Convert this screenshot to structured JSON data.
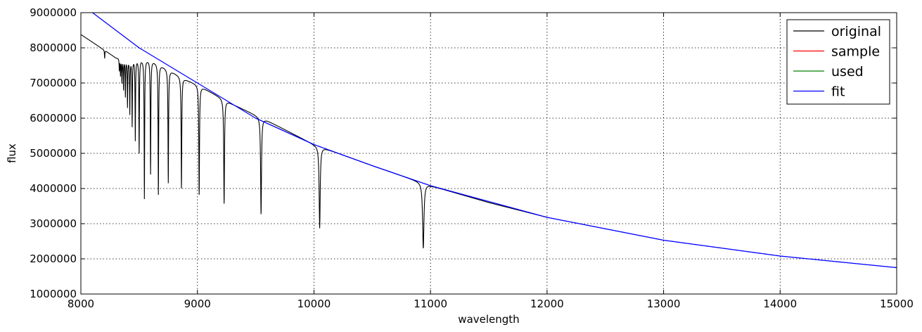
{
  "chart_data": {
    "type": "line",
    "title": "",
    "xlabel": "wavelength",
    "ylabel": "flux",
    "xlim": [
      8000,
      15000
    ],
    "ylim": [
      1000000,
      9000000
    ],
    "xticks": [
      8000,
      9000,
      10000,
      11000,
      12000,
      13000,
      14000,
      15000
    ],
    "yticks": [
      1000000,
      2000000,
      3000000,
      4000000,
      5000000,
      6000000,
      7000000,
      8000000,
      9000000
    ],
    "xtick_labels": [
      "8000",
      "9000",
      "10000",
      "11000",
      "12000",
      "13000",
      "14000",
      "15000"
    ],
    "ytick_labels": [
      "1000000",
      "2000000",
      "3000000",
      "4000000",
      "5000000",
      "6000000",
      "7000000",
      "8000000",
      "9000000"
    ],
    "grid": true,
    "legend_position": "top-right",
    "legend": [
      "original",
      "sample",
      "used",
      "fit"
    ],
    "series": [
      {
        "name": "original",
        "color": "#000000",
        "continuum": {
          "x": [
            8000,
            8300,
            8600,
            8900,
            9000,
            9300,
            9600,
            10000,
            10500,
            11000,
            11500,
            12000
          ],
          "y": [
            8380000,
            7720000,
            7660000,
            7100000,
            6950000,
            6400000,
            5930000,
            5250000,
            4650000,
            4080000,
            3600000,
            3180000
          ]
        },
        "absorption_lines": [
          {
            "x": 8204,
            "min": 7700000
          },
          {
            "x": 8330,
            "min": 7350000
          },
          {
            "x": 8340,
            "min": 7200000
          },
          {
            "x": 8352,
            "min": 7000000
          },
          {
            "x": 8366,
            "min": 6800000
          },
          {
            "x": 8382,
            "min": 6600000
          },
          {
            "x": 8400,
            "min": 6300000
          },
          {
            "x": 8420,
            "min": 6100000
          },
          {
            "x": 8440,
            "min": 5750000
          },
          {
            "x": 8467,
            "min": 5350000
          },
          {
            "x": 8500,
            "min": 5000000
          },
          {
            "x": 8545,
            "min": 3700000
          },
          {
            "x": 8598,
            "min": 4400000
          },
          {
            "x": 8665,
            "min": 3820000
          },
          {
            "x": 8750,
            "min": 4150000
          },
          {
            "x": 8863,
            "min": 4000000
          },
          {
            "x": 9015,
            "min": 3820000
          },
          {
            "x": 9229,
            "min": 3570000
          },
          {
            "x": 9546,
            "min": 3270000
          },
          {
            "x": 10049,
            "min": 2870000
          },
          {
            "x": 10938,
            "min": 2300000
          }
        ]
      },
      {
        "name": "sample",
        "color": "#ff0000",
        "x": [],
        "y": []
      },
      {
        "name": "used",
        "color": "#008000",
        "x": [],
        "y": []
      },
      {
        "name": "fit",
        "color": "#0000ff",
        "x": [
          8100,
          8500,
          9000,
          9500,
          10000,
          10500,
          11000,
          12000,
          13000,
          14000,
          15000
        ],
        "y": [
          9000000,
          8000000,
          7000000,
          6000000,
          5250000,
          4650000,
          4080000,
          3180000,
          2530000,
          2080000,
          1750000
        ]
      }
    ]
  }
}
